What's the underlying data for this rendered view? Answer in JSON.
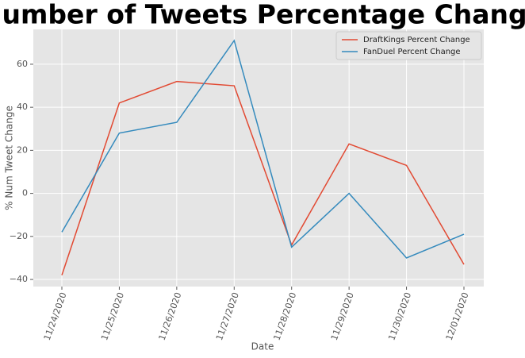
{
  "chart_data": {
    "type": "line",
    "title": "Number of Tweets Percentage Change",
    "x_label": "Date",
    "y_label": "% Num Tweet Change",
    "categories": [
      "11/24/2020",
      "11/25/2020",
      "11/26/2020",
      "11/27/2020",
      "11/28/2020",
      "11/29/2020",
      "11/30/2020",
      "12/01/2020"
    ],
    "series": [
      {
        "name": "DraftKings Percent Change",
        "color": "#E24A33",
        "values": [
          -38,
          42,
          52,
          50,
          -24,
          23,
          13,
          -33
        ]
      },
      {
        "name": "FanDuel Percent Change",
        "color": "#348ABD",
        "values": [
          -18,
          28,
          33,
          71,
          -25,
          0,
          -30,
          -19
        ]
      }
    ],
    "ylim": [
      -43.3,
      76.2
    ],
    "yticks": [
      {
        "value": -40,
        "label": "−40"
      },
      {
        "value": -20,
        "label": "−20"
      },
      0,
      20,
      40,
      60
    ],
    "grid": true,
    "legend": "upper right"
  }
}
